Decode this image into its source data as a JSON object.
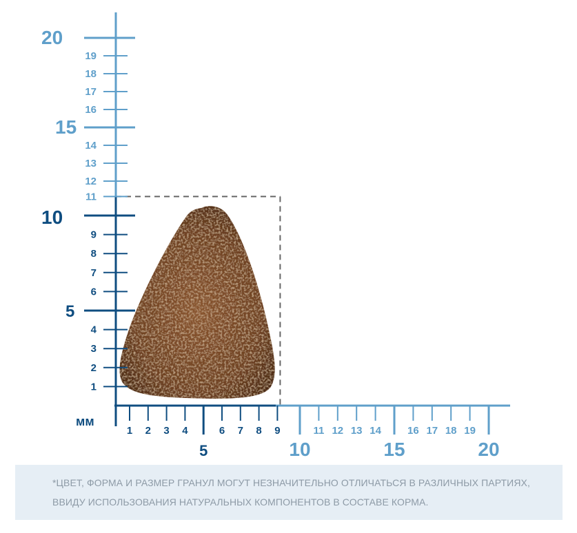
{
  "unit_label": "мм",
  "y_axis": {
    "dark_labels": [
      "1",
      "2",
      "3",
      "4",
      "5",
      "6",
      "7",
      "8",
      "9",
      "10"
    ],
    "light_labels": [
      "11",
      "12",
      "13",
      "14",
      "15",
      "16",
      "17",
      "18",
      "19",
      "20"
    ]
  },
  "x_axis": {
    "dark_labels": [
      "1",
      "2",
      "3",
      "4",
      "5",
      "6",
      "7",
      "8",
      "9"
    ],
    "light_labels": [
      "10",
      "11",
      "12",
      "13",
      "14",
      "15",
      "16",
      "17",
      "18",
      "19",
      "20"
    ]
  },
  "kibble": {
    "width_mm": 9,
    "height_mm": 11,
    "color": "#7a4a2a"
  },
  "colors": {
    "dark_axis": "#0f4d80",
    "light_axis": "#5f9fca",
    "guide": "#666666"
  },
  "disclaimer": {
    "line1": "*ЦВЕТ, ФОРМА И РАЗМЕР ГРАНУЛ МОГУТ НЕЗНАЧИТЕЛЬНО ОТЛИЧАТЬСЯ В РАЗЛИЧНЫХ ПАРТИЯХ,",
    "line2": "ВВИДУ ИСПОЛЬЗОВАНИЯ НАТУРАЛЬНЫХ КОМПОНЕНТОВ В СОСТАВЕ КОРМА."
  }
}
